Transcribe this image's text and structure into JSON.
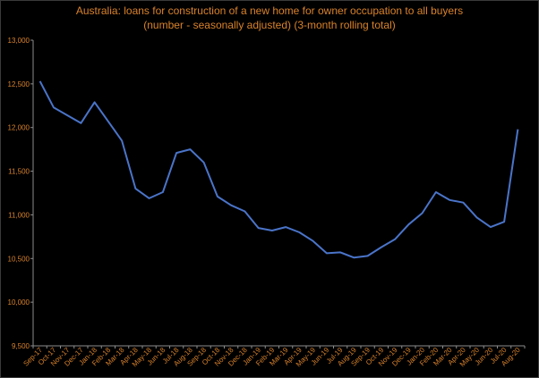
{
  "chart_data": {
    "type": "line",
    "title_line1": "Australia: loans for construction of a new home for owner occupation to all buyers",
    "title_line2": "(number - seasonally adjusted) (3-month rolling total)",
    "xlabel": "",
    "ylabel": "",
    "ylim": [
      9500,
      13000
    ],
    "yticks": [
      9500,
      10000,
      10500,
      11000,
      11500,
      12000,
      12500,
      13000
    ],
    "ytick_labels": [
      "9,500",
      "10,000",
      "10,500",
      "11,000",
      "11,500",
      "12,000",
      "12,500",
      "13,000"
    ],
    "grid": false,
    "legend": "none",
    "line_color": "#4a74c9",
    "text_color": "#d9822b",
    "categories": [
      "Sep-17",
      "Oct-17",
      "Nov-17",
      "Dec-17",
      "Jan-18",
      "Feb-18",
      "Mar-18",
      "Apr-18",
      "May-18",
      "Jun-18",
      "Jul-18",
      "Aug-18",
      "Sep-18",
      "Oct-18",
      "Nov-18",
      "Dec-18",
      "Jan-19",
      "Feb-19",
      "Mar-19",
      "Apr-19",
      "May-19",
      "Jun-19",
      "Jul-19",
      "Aug-19",
      "Sep-19",
      "Oct-19",
      "Nov-19",
      "Dec-19",
      "Jan-20",
      "Feb-20",
      "Mar-20",
      "Apr-20",
      "May-20",
      "Jun-20",
      "Jul-20",
      "Aug-20"
    ],
    "values": [
      12530,
      12230,
      12140,
      12050,
      12290,
      12070,
      11850,
      11300,
      11190,
      11260,
      11710,
      11750,
      11600,
      11210,
      11110,
      11040,
      10850,
      10820,
      10860,
      10800,
      10700,
      10560,
      10570,
      10510,
      10530,
      10630,
      10720,
      10890,
      11020,
      11260,
      11170,
      11140,
      10970,
      10860,
      10920,
      11980
    ]
  }
}
